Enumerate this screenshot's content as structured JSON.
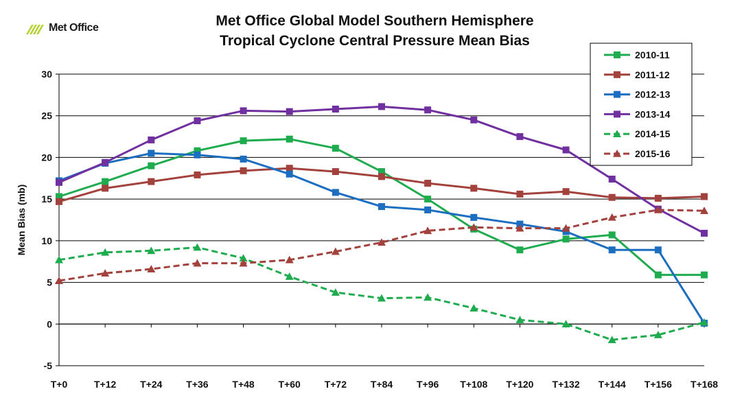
{
  "logo": {
    "text": "Met Office"
  },
  "chart_data": {
    "type": "line",
    "title": "Met Office Global Model Southern Hemisphere",
    "subtitle": "Tropical Cyclone Central Pressure Mean Bias",
    "xlabel": "",
    "ylabel": "Mean Bias (mb)",
    "ylim": [
      -5,
      30
    ],
    "yticks": [
      -5,
      0,
      5,
      10,
      15,
      20,
      25,
      30
    ],
    "grid": "horizontal",
    "legend": "top-right",
    "categories": [
      "T+0",
      "T+12",
      "T+24",
      "T+36",
      "T+48",
      "T+60",
      "T+72",
      "T+84",
      "T+96",
      "T+108",
      "T+120",
      "T+132",
      "T+144",
      "T+156",
      "T+168"
    ],
    "series": [
      {
        "name": "2010-11",
        "color": "#1fac4f",
        "dash": "solid",
        "marker": "square",
        "values": [
          15.3,
          17.1,
          19.0,
          20.8,
          22.0,
          22.2,
          21.1,
          18.3,
          15.0,
          11.4,
          8.9,
          10.2,
          10.7,
          5.9,
          5.9
        ]
      },
      {
        "name": "2011-12",
        "color": "#a3423d",
        "dash": "solid",
        "marker": "square",
        "values": [
          14.7,
          16.3,
          17.1,
          17.9,
          18.4,
          18.7,
          18.3,
          17.7,
          16.9,
          16.3,
          15.6,
          15.9,
          15.2,
          15.1,
          15.3
        ]
      },
      {
        "name": "2012-13",
        "color": "#1c6fc0",
        "dash": "solid",
        "marker": "square",
        "values": [
          17.2,
          19.3,
          20.5,
          20.3,
          19.8,
          18.0,
          15.8,
          14.1,
          13.7,
          12.8,
          12.0,
          11.1,
          8.9,
          8.9,
          0.1
        ]
      },
      {
        "name": "2013-14",
        "color": "#7030a0",
        "dash": "solid",
        "marker": "square",
        "values": [
          17.0,
          19.4,
          22.1,
          24.4,
          25.6,
          25.5,
          25.8,
          26.1,
          25.7,
          24.5,
          22.5,
          20.9,
          17.4,
          13.8,
          10.9
        ]
      },
      {
        "name": "2014-15",
        "color": "#1fac4f",
        "dash": "dashed",
        "marker": "triangle",
        "values": [
          7.7,
          8.6,
          8.8,
          9.2,
          7.9,
          5.7,
          3.8,
          3.1,
          3.2,
          1.9,
          0.5,
          0.0,
          -1.9,
          -1.3,
          0.2
        ]
      },
      {
        "name": "2015-16",
        "color": "#a3423d",
        "dash": "dashed",
        "marker": "triangle",
        "values": [
          5.2,
          6.1,
          6.6,
          7.3,
          7.3,
          7.7,
          8.7,
          9.8,
          11.2,
          11.6,
          11.5,
          11.5,
          12.8,
          13.7,
          13.6
        ]
      }
    ]
  }
}
